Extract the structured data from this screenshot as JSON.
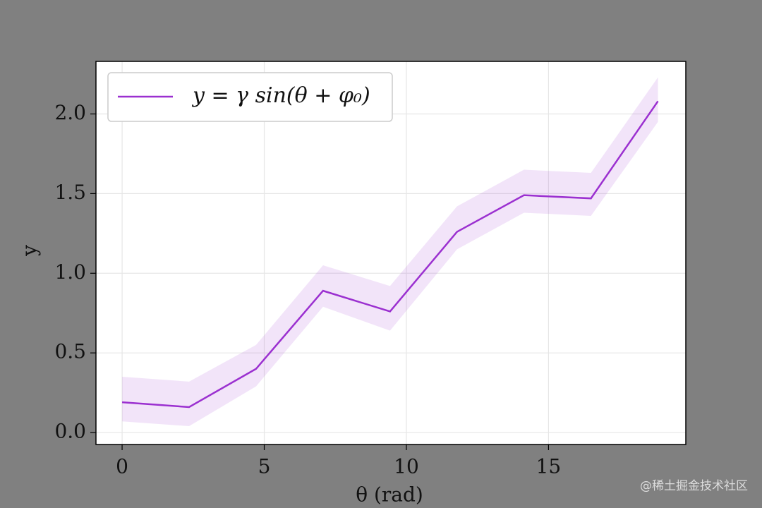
{
  "chart_data": {
    "type": "line",
    "xlabel": "θ (rad)",
    "ylabel": "y",
    "x": [
      0,
      2.356,
      4.712,
      7.069,
      9.425,
      11.781,
      14.137,
      16.493,
      18.85
    ],
    "series": [
      {
        "name": "y = γ sin(θ + φ₀)",
        "color": "#9b30d0",
        "values": [
          0.19,
          0.16,
          0.4,
          0.89,
          0.76,
          1.26,
          1.49,
          1.47,
          2.08
        ],
        "upper": [
          0.35,
          0.32,
          0.55,
          1.05,
          0.92,
          1.42,
          1.65,
          1.63,
          2.23
        ],
        "lower": [
          0.07,
          0.04,
          0.29,
          0.79,
          0.64,
          1.15,
          1.38,
          1.36,
          1.95
        ]
      }
    ],
    "xlim": [
      -0.92,
      19.83
    ],
    "ylim": [
      -0.075,
      2.33
    ],
    "xticks": [
      0,
      5,
      10,
      15
    ],
    "yticks": [
      {
        "value": 0,
        "label": "0.0"
      },
      0.5,
      {
        "value": 1,
        "label": "1.0"
      },
      1.5,
      {
        "value": 2,
        "label": "2.0"
      }
    ],
    "grid": true,
    "legend": "upper left",
    "watermark": "@稀土掘金技术社区"
  }
}
